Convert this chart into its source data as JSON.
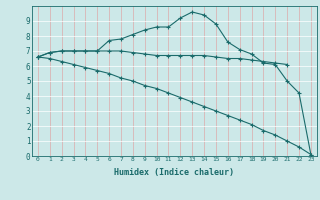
{
  "xlabel": "Humidex (Indice chaleur)",
  "bg_color": "#cce8e8",
  "grid_color": "#ffffff",
  "line_color": "#1a6b6b",
  "line1_x": [
    0,
    1,
    2,
    3,
    4,
    5,
    6,
    7,
    8,
    9,
    10,
    11,
    12,
    13,
    14,
    15,
    16,
    17,
    18,
    19,
    20,
    21,
    22,
    23
  ],
  "line1_y": [
    6.6,
    6.9,
    7.0,
    7.0,
    7.0,
    7.0,
    7.7,
    7.8,
    8.1,
    8.4,
    8.6,
    8.6,
    9.2,
    9.6,
    9.4,
    8.8,
    7.6,
    7.1,
    6.8,
    6.2,
    6.1,
    5.0,
    4.2,
    0.1
  ],
  "line2_x": [
    0,
    1,
    2,
    3,
    4,
    5,
    6,
    7,
    8,
    9,
    10,
    11,
    12,
    13,
    14,
    15,
    16,
    17,
    18,
    19,
    20,
    21
  ],
  "line2_y": [
    6.6,
    6.9,
    7.0,
    7.0,
    7.0,
    7.0,
    7.0,
    7.0,
    6.9,
    6.8,
    6.7,
    6.7,
    6.7,
    6.7,
    6.7,
    6.6,
    6.5,
    6.5,
    6.4,
    6.3,
    6.2,
    6.1
  ],
  "line3_x": [
    0,
    1,
    2,
    3,
    4,
    5,
    6,
    7,
    8,
    9,
    10,
    11,
    12,
    13,
    14,
    15,
    16,
    17,
    18,
    19,
    20,
    21,
    22,
    23
  ],
  "line3_y": [
    6.6,
    6.5,
    6.3,
    6.1,
    5.9,
    5.7,
    5.5,
    5.2,
    5.0,
    4.7,
    4.5,
    4.2,
    3.9,
    3.6,
    3.3,
    3.0,
    2.7,
    2.4,
    2.1,
    1.7,
    1.4,
    1.0,
    0.6,
    0.1
  ],
  "xlim": [
    -0.5,
    23.5
  ],
  "ylim": [
    0,
    10
  ],
  "yticks": [
    0,
    1,
    2,
    3,
    4,
    5,
    6,
    7,
    8,
    9
  ],
  "xticks": [
    0,
    1,
    2,
    3,
    4,
    5,
    6,
    7,
    8,
    9,
    10,
    11,
    12,
    13,
    14,
    15,
    16,
    17,
    18,
    19,
    20,
    21,
    22,
    23
  ]
}
